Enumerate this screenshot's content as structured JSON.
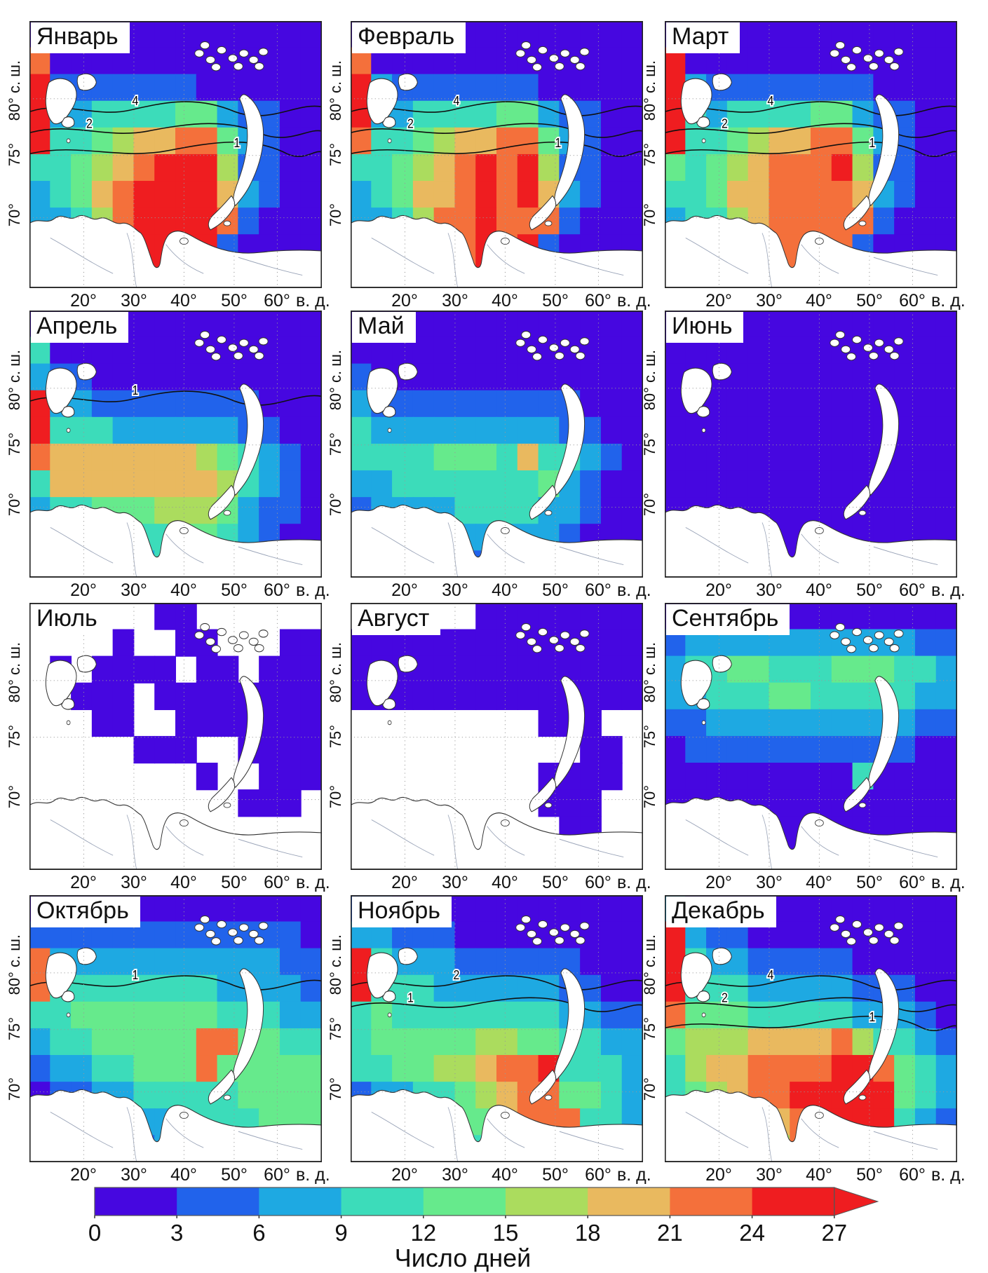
{
  "chart_data": {
    "type": "heatmap",
    "description_label": "Число дней",
    "x_ticks": [
      "20°",
      "30°",
      "40°",
      "50°",
      "60°"
    ],
    "x_axis_suffix": "в. д.",
    "y_ticks": [
      "80° с. ш.",
      "75°",
      "70°"
    ],
    "colorbar": {
      "label": "Число дней",
      "ticks": [
        "0",
        "3",
        "6",
        "9",
        "12",
        "15",
        "18",
        "21",
        "24",
        "27"
      ],
      "colors": [
        "#4607e0",
        "#2163eb",
        "#1ea9e2",
        "#3cdcba",
        "#66ea8c",
        "#abdc5e",
        "#e9b95f",
        "#f4703b",
        "#ef1d20"
      ]
    },
    "subplots": [
      {
        "title": "Январь",
        "contour_labels": [
          "4",
          "2",
          "1"
        ],
        "field": [
          "00000000000000",
          "70000000000000",
          "81111111000000",
          "82233334421100",
          "83345667742100",
          "33456788851100",
          "23467888862100",
          "22357888871000",
          "12347888810000",
          "11127888800000"
        ]
      },
      {
        "title": "Февраль",
        "contour_labels": [
          "4",
          "2",
          "1"
        ],
        "field": [
          "00000000000000",
          "70000000000000",
          "82111111100000",
          "82233334421100",
          "73345667742100",
          "33456787851100",
          "23466787862100",
          "22357787771000",
          "12347787810000",
          "11127787800000"
        ]
      },
      {
        "title": "Март",
        "contour_labels": [
          "4",
          "2",
          "1"
        ],
        "field": [
          "00000000000000",
          "80000000000000",
          "82111111110000",
          "83233334421100",
          "83345667742100",
          "43456777851100",
          "33466777762100",
          "23356777771000",
          "12346777710000",
          "11126777700000"
        ]
      },
      {
        "title": "Апрель",
        "contour_labels": [
          "1"
        ],
        "field": [
          "00000000000000",
          "30000000000000",
          "21100000000000",
          "82211111111000",
          "83332222221100",
          "76666666543210",
          "36666666653210",
          "23344455542110",
          "12233334432100",
          "11122233321000"
        ]
      },
      {
        "title": "Май",
        "contour_labels": [],
        "field": [
          "00000000000000",
          "00000000000000",
          "10000000000000",
          "21111111111000",
          "32222222221100",
          "33334443633210",
          "22333333342100",
          "12222333322100",
          "11112222221000",
          "01111111110000"
        ]
      },
      {
        "title": "Июнь",
        "contour_labels": [],
        "field": [
          "00000000000000",
          "00000000000000",
          "00000000000000",
          "00000000000000",
          "00000000000000",
          "00000000000000",
          "00000000000000",
          "00000000000000",
          "00..0000000000",
          "0....000000000"
        ]
      },
      {
        "title": "Июль",
        "contour_labels": [],
        "field": [
          "......00......",
          "....0..00...00",
          ".0.0000.00.000",
          "..000.00000000",
          "...00..0000000",
          ".....000..0000",
          "........0..000",
          "..........000.",
          "..............",
          ".............."
        ]
      },
      {
        "title": "Август",
        "contour_labels": [],
        "field": [
          "......00000000",
          "00000000000000",
          "00000000000000",
          "00000000000000",
          ".........000..",
          "...........00.",
          ".........0000.",
          ".........000..",
          "..........00..",
          ".............."
        ]
      },
      {
        "title": "Сентябрь",
        "contour_labels": [],
        "field": [
          "00000000000000",
          "12222222222211",
          "23344333444332",
          "22333443333322",
          "11222222222211",
          "01111111111100",
          "00000000030000",
          "00000000000000",
          "00000000000000",
          "00000000000000"
        ]
      },
      {
        "title": "Октябрь",
        "contour_labels": [
          "1"
        ],
        "field": [
          "00000000000000",
          "11111111111110",
          "72222222222211",
          "73333333322221",
          "33444444433322",
          "23344444774433",
          "12233444744444",
          "01122333334444",
          "00011223333444",
          "00001122233334"
        ]
      },
      {
        "title": "Ноябрь",
        "contour_labels": [
          "2",
          "1"
        ],
        "field": [
          "11000000000000",
          "22111000000000",
          "83222111111000",
          "83332222221100",
          "34333333332211",
          "34444455443322",
          "33445567783332",
          "12233456774432",
          "11223446777332",
          "01122337887221"
        ]
      },
      {
        "title": "Декабрь",
        "contour_labels": [
          "4",
          "2",
          "1"
        ],
        "field": [
          "20000000000000",
          "82110000000000",
          "83221111100000",
          "83332222211100",
          "74443333322210",
          "45556666753321",
          "35667777887432",
          "34567788888432",
          "11234678888321",
          "01123578888210"
        ]
      }
    ]
  }
}
